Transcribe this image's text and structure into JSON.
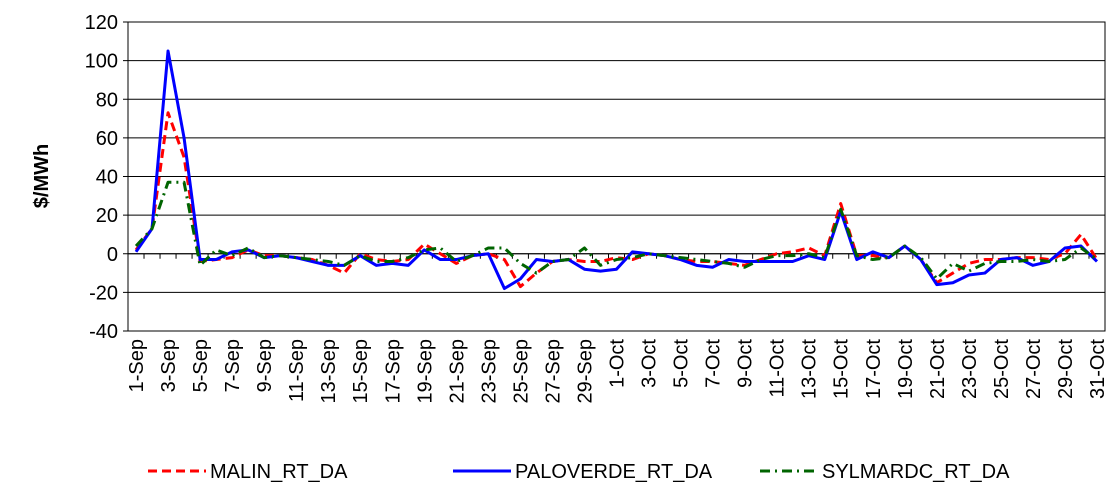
{
  "chart_data": {
    "type": "line",
    "y_axis_label": "$/MWh",
    "categories": [
      "1-Sep",
      null,
      "3-Sep",
      null,
      "5-Sep",
      null,
      "7-Sep",
      null,
      "9-Sep",
      null,
      "11-Sep",
      null,
      "13-Sep",
      null,
      "15-Sep",
      null,
      "17-Sep",
      null,
      "19-Sep",
      null,
      "21-Sep",
      null,
      "23-Sep",
      null,
      "25-Sep",
      null,
      "27-Sep",
      null,
      "29-Sep",
      null,
      "1-Oct",
      null,
      "3-Oct",
      null,
      "5-Oct",
      null,
      "7-Oct",
      null,
      "9-Oct",
      null,
      "11-Oct",
      null,
      "13-Oct",
      null,
      "15-Oct",
      null,
      "17-Oct",
      null,
      "19-Oct",
      null,
      "21-Oct",
      null,
      "23-Oct",
      null,
      "25-Oct",
      null,
      "27-Oct",
      null,
      "29-Oct",
      null,
      "31-Oct"
    ],
    "series": [
      {
        "name": "MALIN_RT_DA",
        "color": "#ff0000",
        "dash": "dashed",
        "values": [
          2,
          13,
          73,
          50,
          -4,
          -3,
          -2,
          2,
          -1,
          -1,
          -2,
          -3,
          -6,
          -10,
          0,
          -3,
          -4,
          -3,
          5,
          0,
          -5,
          -1,
          0,
          -3,
          -17,
          -10,
          -4,
          -3,
          -4,
          -4,
          -2,
          -3,
          0,
          -1,
          -3,
          -4,
          -4,
          -5,
          -6,
          -3,
          0,
          1,
          3,
          -1,
          26,
          -1,
          -1,
          -2,
          4,
          -3,
          -15,
          -10,
          -5,
          -3,
          -3,
          -2,
          -2,
          -3,
          0,
          10,
          -3
        ]
      },
      {
        "name": "PALOVERDE_RT_DA",
        "color": "#0000ff",
        "dash": "solid",
        "values": [
          1,
          13,
          105,
          60,
          -3,
          -3,
          1,
          2,
          -2,
          -1,
          -2,
          -4,
          -6,
          -6,
          -1,
          -6,
          -5,
          -6,
          2,
          -3,
          -3,
          -1,
          0,
          -18,
          -13,
          -3,
          -4,
          -3,
          -8,
          -9,
          -8,
          1,
          0,
          -1,
          -3,
          -6,
          -7,
          -3,
          -4,
          -4,
          -4,
          -4,
          -1,
          -3,
          22,
          -3,
          1,
          -2,
          4,
          -3,
          -16,
          -15,
          -11,
          -10,
          -3,
          -2,
          -6,
          -4,
          3,
          4,
          -4
        ]
      },
      {
        "name": "SYLMARDC_RT_DA",
        "color": "#006400",
        "dash": "dashdot",
        "values": [
          4,
          13,
          37,
          37,
          -6,
          2,
          -1,
          3,
          -2,
          -1,
          -2,
          -3,
          -4,
          -6,
          -1,
          -4,
          -4,
          -2,
          2,
          3,
          -4,
          -1,
          3,
          3,
          -5,
          -10,
          -4,
          -3,
          3,
          -6,
          -3,
          -2,
          0,
          -1,
          -2,
          -3,
          -4,
          -5,
          -7,
          -3,
          -1,
          -1,
          0,
          -2,
          23,
          -1,
          -3,
          -2,
          4,
          -2,
          -13,
          -5,
          -9,
          -5,
          -4,
          -4,
          -3,
          -4,
          -3,
          3,
          -3
        ]
      }
    ],
    "ylim": [
      -40,
      120
    ],
    "yticks": [
      -40,
      -20,
      0,
      20,
      40,
      60,
      80,
      100,
      120
    ],
    "grid": true,
    "legend": "bottom"
  }
}
